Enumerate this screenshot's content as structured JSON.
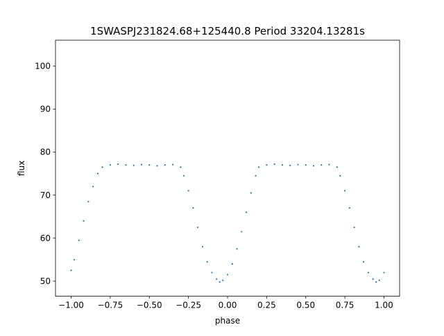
{
  "chart_data": {
    "type": "scatter",
    "title": "1SWASPJ231824.68+125440.8 Period 33204.13281s",
    "xlabel": "phase",
    "ylabel": "flux",
    "xlim": [
      -1.1,
      1.1
    ],
    "ylim": [
      46.5,
      106.0
    ],
    "xticks": [
      -1.0,
      -0.75,
      -0.5,
      -0.25,
      0.0,
      0.25,
      0.5,
      0.75,
      1.0
    ],
    "xtick_labels": [
      "−1.00",
      "−0.75",
      "−0.50",
      "−0.25",
      "0.00",
      "0.25",
      "0.50",
      "0.75",
      "1.00"
    ],
    "yticks": [
      50,
      60,
      70,
      80,
      90,
      100
    ],
    "ytick_labels": [
      "50",
      "60",
      "70",
      "80",
      "90",
      "100"
    ],
    "grid": false,
    "legend": false,
    "marker_color": "#1f77b4",
    "series": [
      {
        "values_description": "phase-folded light curve, duplicated over phase -1..1; baseline flux ~77; primary eclipse minimum ~50 at phase ~-0.05 and ~0.95; secondary band ~74 near phase ~0.0 and ~1.0",
        "points": [
          [
            -1.0,
            52.5
          ],
          [
            -0.98,
            55.0
          ],
          [
            -0.95,
            59.5
          ],
          [
            -0.92,
            64.0
          ],
          [
            -0.89,
            68.5
          ],
          [
            -0.86,
            72.0
          ],
          [
            -0.83,
            75.0
          ],
          [
            -0.8,
            76.5
          ],
          [
            -0.75,
            77.0
          ],
          [
            -0.7,
            77.2
          ],
          [
            -0.65,
            77.0
          ],
          [
            -0.6,
            76.9
          ],
          [
            -0.55,
            77.1
          ],
          [
            -0.5,
            77.0
          ],
          [
            -0.45,
            76.8
          ],
          [
            -0.4,
            77.0
          ],
          [
            -0.35,
            77.1
          ],
          [
            -0.3,
            76.5
          ],
          [
            -0.28,
            74.5
          ],
          [
            -0.25,
            71.0
          ],
          [
            -0.22,
            67.0
          ],
          [
            -0.19,
            62.5
          ],
          [
            -0.16,
            58.0
          ],
          [
            -0.13,
            54.5
          ],
          [
            -0.1,
            52.0
          ],
          [
            -0.07,
            50.5
          ],
          [
            -0.05,
            49.8
          ],
          [
            -0.03,
            50.2
          ],
          [
            0.0,
            51.5
          ],
          [
            0.03,
            54.0
          ],
          [
            0.06,
            57.5
          ],
          [
            0.09,
            61.5
          ],
          [
            0.12,
            66.0
          ],
          [
            0.15,
            70.5
          ],
          [
            0.18,
            74.5
          ],
          [
            0.2,
            76.5
          ],
          [
            0.25,
            77.0
          ],
          [
            0.3,
            77.2
          ],
          [
            0.35,
            77.0
          ],
          [
            0.4,
            76.9
          ],
          [
            0.45,
            77.1
          ],
          [
            0.5,
            77.0
          ],
          [
            0.55,
            76.8
          ],
          [
            0.6,
            77.0
          ],
          [
            0.65,
            77.1
          ],
          [
            0.7,
            76.5
          ],
          [
            0.72,
            74.5
          ],
          [
            0.75,
            71.0
          ],
          [
            0.78,
            67.0
          ],
          [
            0.81,
            62.5
          ],
          [
            0.84,
            58.0
          ],
          [
            0.87,
            54.5
          ],
          [
            0.9,
            52.0
          ],
          [
            0.93,
            50.5
          ],
          [
            0.95,
            49.8
          ],
          [
            0.97,
            50.2
          ],
          [
            1.0,
            52.0
          ]
        ]
      }
    ]
  }
}
